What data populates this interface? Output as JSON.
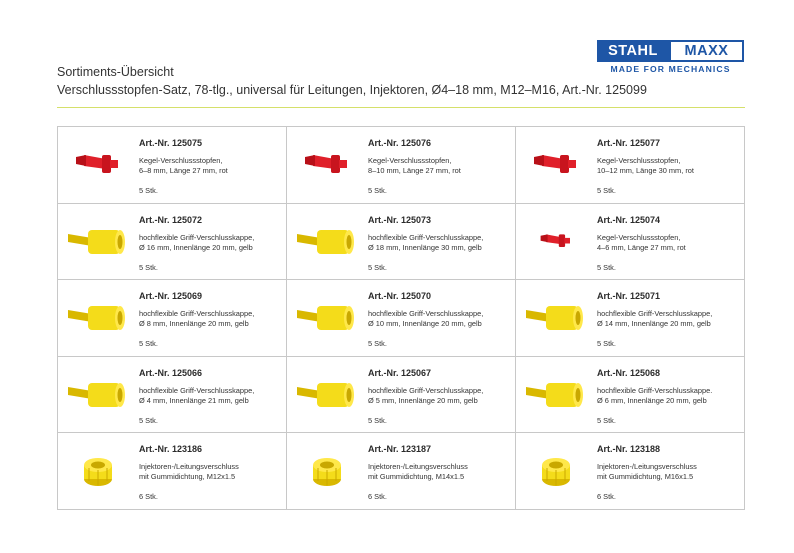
{
  "header": {
    "title": "Sortiments-Übersicht",
    "subtitle": "Verschlussstopfen-Satz, 78-tlg., universal für Leitungen, Injektoren, Ø4–18 mm, M12–M16, Art.-Nr. 125099"
  },
  "logo": {
    "left": "STAHL",
    "right": "MAXX",
    "tagline": "MADE FOR MECHANICS"
  },
  "colors": {
    "red": "#e0202a",
    "yellow": "#f4dc1a",
    "brand": "#1e56a6",
    "accent_line": "#d5e06a"
  },
  "products": [
    {
      "art": "Art.-Nr. 125075",
      "desc": "Kegel-Verschlussstopfen,\n6–8 mm, Länge 27 mm, rot",
      "qty": "5 Stk.",
      "icon": "red-cone-plug-icon"
    },
    {
      "art": "Art.-Nr. 125076",
      "desc": "Kegel-Verschlussstopfen,\n8–10 mm, Länge 27 mm, rot",
      "qty": "5 Stk.",
      "icon": "red-cone-plug-icon"
    },
    {
      "art": "Art.-Nr. 125077",
      "desc": "Kegel-Verschlussstopfen,\n10–12 mm, Länge 30 mm, rot",
      "qty": "5 Stk.",
      "icon": "red-cone-plug-icon"
    },
    {
      "art": "Art.-Nr. 125072",
      "desc": "hochflexible Griff-Verschlusskappe,\nØ 16 mm, Innenlänge 20 mm, gelb",
      "qty": "5 Stk.",
      "icon": "yellow-cap-icon"
    },
    {
      "art": "Art.-Nr. 125073",
      "desc": "hochflexible Griff-Verschlusskappe,\nØ 18 mm, Innenlänge 30 mm, gelb",
      "qty": "5 Stk.",
      "icon": "yellow-cap-icon"
    },
    {
      "art": "Art.-Nr. 125074",
      "desc": "Kegel-Verschlussstopfen,\n4–6 mm, Länge 27 mm, rot",
      "qty": "5 Stk.",
      "icon": "red-cone-plug-icon"
    },
    {
      "art": "Art.-Nr. 125069",
      "desc": "hochflexible Griff-Verschlusskappe,\nØ 8 mm, Innenlänge 20 mm, gelb",
      "qty": "5 Stk.",
      "icon": "yellow-cap-icon"
    },
    {
      "art": "Art.-Nr. 125070",
      "desc": "hochflexible Griff-Verschlusskappe,\nØ 10 mm, Innenlänge 20 mm, gelb",
      "qty": "5 Stk.",
      "icon": "yellow-cap-icon"
    },
    {
      "art": "Art.-Nr. 125071",
      "desc": "hochflexible Griff-Verschlusskappe,\nØ 14 mm, Innenlänge 20 mm, gelb",
      "qty": "5 Stk.",
      "icon": "yellow-cap-icon"
    },
    {
      "art": "Art.-Nr. 125066",
      "desc": "hochflexible Griff-Verschlusskappe,\nØ 4 mm, Innenlänge 21 mm, gelb",
      "qty": "5 Stk.",
      "icon": "yellow-cap-icon"
    },
    {
      "art": "Art.-Nr. 125067",
      "desc": "hochflexible Griff-Verschlusskappe,\nØ 5 mm, Innenlänge 20 mm, gelb",
      "qty": "5 Stk.",
      "icon": "yellow-cap-icon"
    },
    {
      "art": "Art.-Nr. 125068",
      "desc": "hochflexible Griff-Verschlusskappe.\nØ 6 mm, Innenlänge 20 mm, gelb",
      "qty": "5 Stk.",
      "icon": "yellow-cap-icon"
    },
    {
      "art": "Art.-Nr. 123186",
      "desc": "Injektoren-/Leitungsverschluss\nmit Gummidichtung, M12x1.5",
      "qty": "6 Stk.",
      "icon": "yellow-nut-cap-icon"
    },
    {
      "art": "Art.-Nr. 123187",
      "desc": "Injektoren-/Leitungsverschluss\nmit Gummidichtung, M14x1.5",
      "qty": "6 Stk.",
      "icon": "yellow-nut-cap-icon"
    },
    {
      "art": "Art.-Nr. 123188",
      "desc": "Injektoren-/Leitungsverschluss\nmit Gummidichtung, M16x1.5",
      "qty": "6 Stk.",
      "icon": "yellow-nut-cap-icon"
    }
  ]
}
